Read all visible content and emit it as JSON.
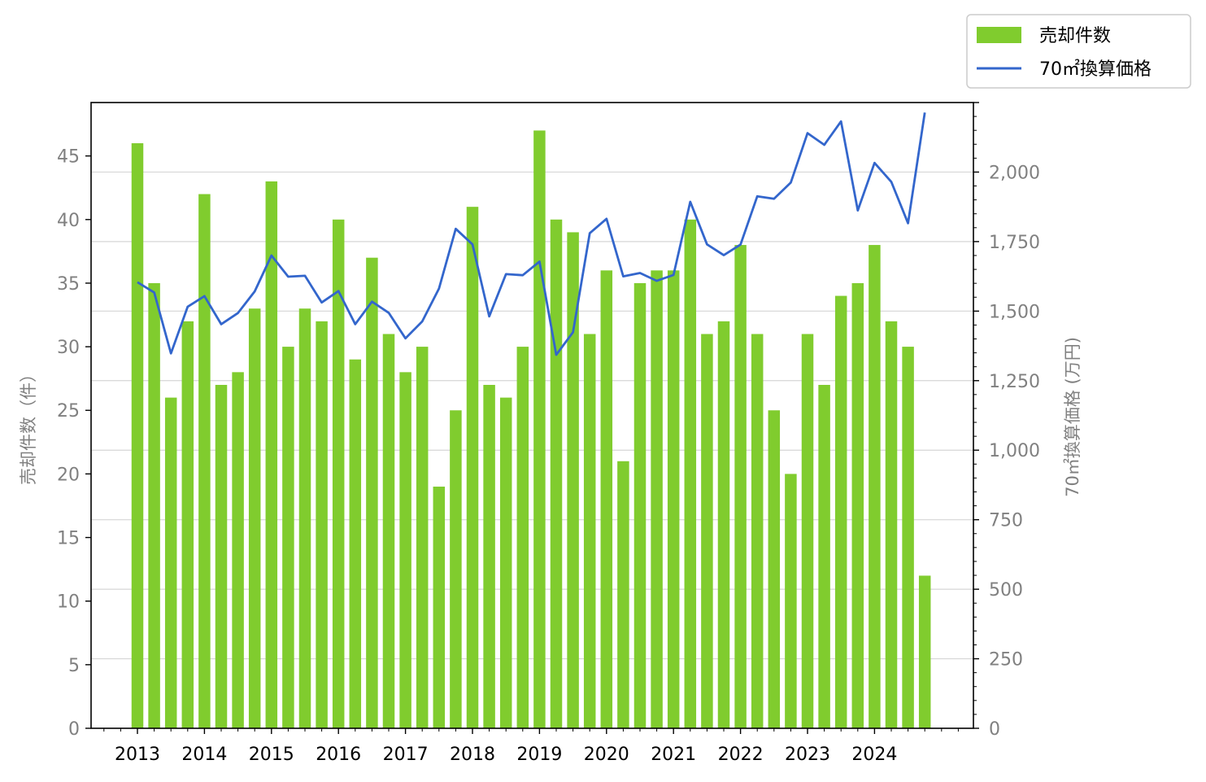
{
  "chart_data": {
    "type": "bar+line",
    "x_start": 2013,
    "periods_per_year": 4,
    "x_tick_labels": [
      "2013",
      "2014",
      "2015",
      "2016",
      "2017",
      "2018",
      "2019",
      "2020",
      "2021",
      "2022",
      "2023",
      "2024"
    ],
    "series": [
      {
        "name": "売却件数",
        "type": "bar",
        "axis": "left",
        "color": "#80cc2e",
        "values": [
          46,
          35,
          26,
          32,
          42,
          27,
          28,
          33,
          43,
          30,
          33,
          32,
          40,
          29,
          37,
          31,
          28,
          30,
          19,
          25,
          41,
          27,
          26,
          30,
          47,
          40,
          39,
          31,
          36,
          21,
          35,
          36,
          36,
          40,
          31,
          32,
          38,
          31,
          25,
          20,
          31,
          27,
          34,
          35,
          38,
          32,
          30,
          12
        ]
      },
      {
        "name": "70㎡換算価格",
        "type": "line",
        "axis": "right",
        "color": "#3366cc",
        "values": [
          1604,
          1567,
          1348,
          1516,
          1554,
          1453,
          1493,
          1571,
          1700,
          1624,
          1627,
          1531,
          1572,
          1453,
          1534,
          1494,
          1402,
          1463,
          1581,
          1796,
          1740,
          1481,
          1633,
          1629,
          1678,
          1343,
          1424,
          1780,
          1832,
          1625,
          1637,
          1609,
          1630,
          1893,
          1740,
          1701,
          1739,
          1913,
          1904,
          1962,
          2140,
          2098,
          2182,
          1862,
          2033,
          1965,
          1816,
          2214
        ]
      }
    ],
    "left_axis": {
      "label": "売却件数（件）",
      "ylim": [
        0,
        49.2
      ],
      "ticks": [
        "0",
        "5",
        "10",
        "15",
        "20",
        "25",
        "30",
        "35",
        "40",
        "45"
      ]
    },
    "right_axis": {
      "label": "70㎡換算価格 (万円)",
      "ylim": [
        0,
        2250
      ],
      "ticks": [
        "0",
        "250",
        "500",
        "750",
        "1,000",
        "1,250",
        "1,500",
        "1,750",
        "2,000"
      ]
    },
    "grid": "horizontal-right-axis",
    "legend_position": "top-right-outside"
  }
}
